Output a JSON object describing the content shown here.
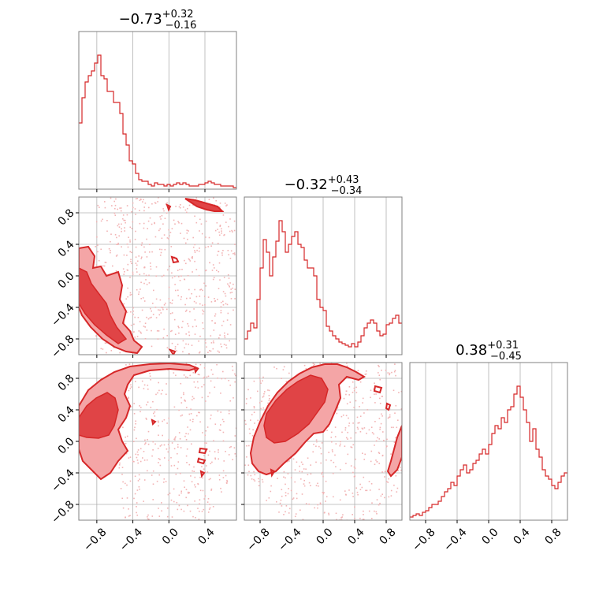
{
  "figure": {
    "type": "corner-plot",
    "colors": {
      "main": "#d62728",
      "fill_outer": "#f4a5a6",
      "fill_inner": "#e04446",
      "scatter": "#f2b3b4",
      "grid": "#b0b0b0",
      "frame": "#808080"
    }
  },
  "chart_data": [
    {
      "id": "hist_0",
      "type": "histogram",
      "title": {
        "value": "−0.73",
        "sup": "+0.32",
        "sub": "−0.16"
      },
      "xlim": [
        -1.0,
        0.75
      ],
      "ylim": [
        0,
        1.0
      ],
      "grid": true,
      "xticks": [
        -0.8,
        -0.4,
        0.0,
        0.4
      ],
      "bin_start": -1.0,
      "bin_width": 0.035,
      "heights": [
        0.42,
        0.58,
        0.68,
        0.72,
        0.75,
        0.8,
        0.85,
        0.72,
        0.7,
        0.62,
        0.62,
        0.55,
        0.55,
        0.48,
        0.35,
        0.28,
        0.18,
        0.16,
        0.1,
        0.06,
        0.05,
        0.05,
        0.03,
        0.02,
        0.04,
        0.03,
        0.03,
        0.02,
        0.03,
        0.02,
        0.03,
        0.04,
        0.03,
        0.04,
        0.03,
        0.02,
        0.02,
        0.02,
        0.03,
        0.03,
        0.04,
        0.05,
        0.04,
        0.03,
        0.03,
        0.02,
        0.02,
        0.02,
        0.02,
        0.01
      ]
    },
    {
      "id": "hist_1",
      "type": "histogram",
      "title": {
        "value": "−0.32",
        "sup": "+0.43",
        "sub": "−0.34"
      },
      "xlim": [
        -1.0,
        1.0
      ],
      "ylim": [
        0,
        1.0
      ],
      "grid": true,
      "xticks": [
        -0.8,
        -0.4,
        0.0,
        0.4,
        0.8
      ],
      "bin_start": -1.0,
      "bin_width": 0.04,
      "heights": [
        0.1,
        0.15,
        0.2,
        0.17,
        0.35,
        0.55,
        0.73,
        0.65,
        0.5,
        0.62,
        0.72,
        0.85,
        0.78,
        0.65,
        0.7,
        0.75,
        0.78,
        0.7,
        0.68,
        0.6,
        0.55,
        0.55,
        0.5,
        0.35,
        0.3,
        0.28,
        0.18,
        0.15,
        0.12,
        0.1,
        0.08,
        0.07,
        0.06,
        0.05,
        0.07,
        0.05,
        0.08,
        0.12,
        0.17,
        0.2,
        0.22,
        0.2,
        0.15,
        0.12,
        0.13,
        0.19,
        0.2,
        0.23,
        0.25,
        0.2
      ]
    },
    {
      "id": "hist_2",
      "type": "histogram",
      "title": {
        "value": "0.38",
        "sup": "+0.31",
        "sub": "−0.45"
      },
      "xlim": [
        -1.0,
        1.0
      ],
      "ylim": [
        0,
        1.0
      ],
      "grid": true,
      "xticks": [
        -0.8,
        -0.4,
        0.0,
        0.4,
        0.8
      ],
      "tick_labels": [
        "−0.8",
        "−0.4",
        "0.0",
        "0.4",
        "0.8"
      ],
      "bin_start": -1.0,
      "bin_width": 0.04,
      "heights": [
        0.02,
        0.03,
        0.04,
        0.03,
        0.05,
        0.06,
        0.08,
        0.1,
        0.1,
        0.12,
        0.15,
        0.18,
        0.2,
        0.24,
        0.22,
        0.28,
        0.32,
        0.35,
        0.3,
        0.32,
        0.36,
        0.38,
        0.42,
        0.45,
        0.42,
        0.48,
        0.55,
        0.6,
        0.58,
        0.65,
        0.62,
        0.7,
        0.72,
        0.8,
        0.85,
        0.78,
        0.7,
        0.62,
        0.5,
        0.58,
        0.45,
        0.4,
        0.32,
        0.28,
        0.26,
        0.22,
        0.2,
        0.24,
        0.28,
        0.3
      ]
    },
    {
      "id": "contour_1_0",
      "type": "contour",
      "xlim": [
        -1.0,
        0.75
      ],
      "ylim": [
        -1.0,
        1.0
      ],
      "grid": true,
      "xticks": [
        -0.8,
        -0.4,
        0.0,
        0.4
      ],
      "yticks": [
        -0.8,
        -0.4,
        0.0,
        0.4,
        0.8
      ],
      "ytick_labels": [
        "−0.8",
        "−0.4",
        "0.0",
        "0.4",
        "0.8"
      ]
    },
    {
      "id": "contour_2_0",
      "type": "contour",
      "xlim": [
        -1.0,
        0.75
      ],
      "ylim": [
        -1.0,
        1.0
      ],
      "grid": true,
      "xticks": [
        -0.8,
        -0.4,
        0.0,
        0.4
      ],
      "yticks": [
        -0.8,
        -0.4,
        0.0,
        0.4,
        0.8
      ],
      "xtick_labels": [
        "−0.8",
        "−0.4",
        "0.0",
        "0.4"
      ],
      "ytick_labels": [
        "−0.8",
        "−0.4",
        "0.0",
        "0.4",
        "0.8"
      ]
    },
    {
      "id": "contour_2_1",
      "type": "contour",
      "xlim": [
        -1.0,
        1.0
      ],
      "ylim": [
        -1.0,
        1.0
      ],
      "grid": true,
      "xticks": [
        -0.8,
        -0.4,
        0.0,
        0.4,
        0.8
      ],
      "yticks": [
        -0.8,
        -0.4,
        0.0,
        0.4,
        0.8
      ],
      "xtick_labels": [
        "−0.8",
        "−0.4",
        "0.0",
        "0.4",
        "0.8"
      ]
    }
  ]
}
